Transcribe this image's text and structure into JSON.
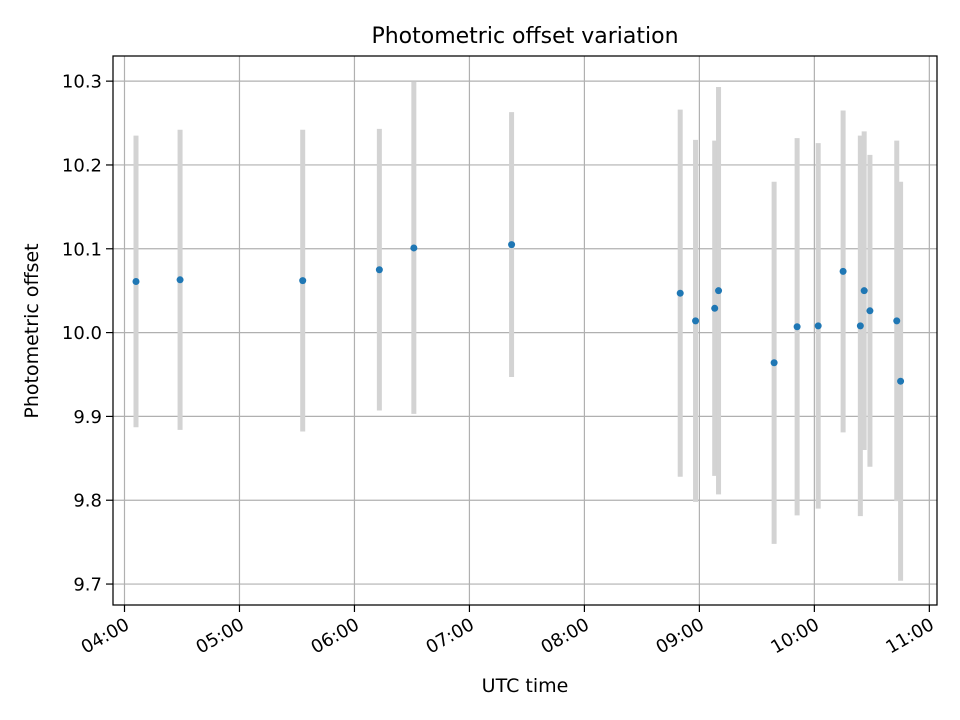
{
  "chart_data": {
    "type": "scatter",
    "title": "Photometric offset variation",
    "xlabel": "UTC time",
    "ylabel": "Photometric offset",
    "x_ticks": [
      "04:00",
      "05:00",
      "06:00",
      "07:00",
      "08:00",
      "09:00",
      "10:00",
      "11:00"
    ],
    "y_ticks": [
      "9.7",
      "9.8",
      "9.9",
      "10.0",
      "10.1",
      "10.2",
      "10.3"
    ],
    "xlim": [
      "03:54",
      "11:04"
    ],
    "ylim": [
      9.675,
      10.33
    ],
    "grid": true,
    "colors": {
      "point": "#1f77b4",
      "errorbar": "#d3d3d3",
      "grid": "#b0b0b0"
    },
    "series": [
      {
        "points": [
          {
            "x": "04:06",
            "y": 10.061,
            "err": 0.174
          },
          {
            "x": "04:29",
            "y": 10.063,
            "err": 0.179
          },
          {
            "x": "05:33",
            "y": 10.062,
            "err": 0.18
          },
          {
            "x": "06:13",
            "y": 10.075,
            "err": 0.168
          },
          {
            "x": "06:31",
            "y": 10.101,
            "err": 0.198
          },
          {
            "x": "07:22",
            "y": 10.105,
            "err": 0.158
          },
          {
            "x": "08:50",
            "y": 10.047,
            "err": 0.219
          },
          {
            "x": "08:58",
            "y": 10.014,
            "err": 0.216
          },
          {
            "x": "09:08",
            "y": 10.029,
            "err": 0.2
          },
          {
            "x": "09:10",
            "y": 10.05,
            "err": 0.243
          },
          {
            "x": "09:39",
            "y": 9.964,
            "err": 0.216
          },
          {
            "x": "09:51",
            "y": 10.007,
            "err": 0.225
          },
          {
            "x": "10:02",
            "y": 10.008,
            "err": 0.218
          },
          {
            "x": "10:15",
            "y": 10.073,
            "err": 0.192
          },
          {
            "x": "10:24",
            "y": 10.008,
            "err": 0.227
          },
          {
            "x": "10:26",
            "y": 10.05,
            "err": 0.19
          },
          {
            "x": "10:29",
            "y": 10.026,
            "err": 0.186
          },
          {
            "x": "10:43",
            "y": 10.014,
            "err": 0.215
          },
          {
            "x": "10:45",
            "y": 9.942,
            "err": 0.238
          }
        ]
      }
    ]
  }
}
